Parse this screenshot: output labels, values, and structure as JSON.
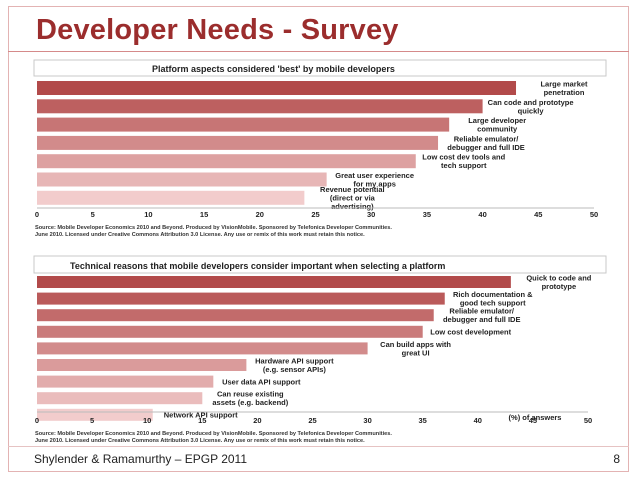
{
  "slide": {
    "title": "Developer Needs - Survey",
    "footer": "Shylender & Ramamurthy – EPGP 2011",
    "page_number": "8"
  },
  "colors": {
    "title": "#9b2d2d",
    "dark_bar": "#b24a4a",
    "light_bar": "#f2cccc"
  },
  "chart_data": [
    {
      "type": "bar",
      "orientation": "horizontal",
      "title": "Platform aspects considered 'best' by mobile developers",
      "categories": [
        [
          "Large market",
          "penetration"
        ],
        [
          "Can code and prototype",
          "quickly"
        ],
        [
          "Large developer",
          "community"
        ],
        [
          "Reliable emulator/",
          "debugger and full IDE"
        ],
        [
          "Low cost dev tools and",
          "tech support"
        ],
        [
          "Great user experience",
          "for my apps"
        ],
        [
          "Revenue potential",
          "(direct or via",
          "advertising)"
        ]
      ],
      "values": [
        43,
        40,
        37,
        36,
        34,
        26,
        24
      ],
      "xlim": [
        0,
        50
      ],
      "xticks": [
        "0",
        "5",
        "10",
        "15",
        "20",
        "25",
        "30",
        "35",
        "40",
        "45",
        "50"
      ],
      "source": [
        "Source: Mobile Developer Economics 2010 and Beyond. Produced by VisionMobile. Sponsored by Telefonica Developer Communities.",
        "June 2010. Licensed under Creative Commons Attribution 3.0 License. Any use or remix of this work must retain this notice."
      ]
    },
    {
      "type": "bar",
      "orientation": "horizontal",
      "title": "Technical reasons that mobile developers consider important when selecting a platform",
      "categories": [
        [
          "Quick to code and",
          "prototype"
        ],
        [
          "Rich documentation &",
          "good tech support"
        ],
        [
          "Reliable emulator/",
          "debugger and full IDE"
        ],
        [
          "Low cost development"
        ],
        [
          "Can build apps with",
          "great UI"
        ],
        [
          "Hardware API support",
          "(e.g. sensor APIs)"
        ],
        [
          "User data API support"
        ],
        [
          "Can reuse existing",
          "assets (e.g. backend)"
        ],
        [
          "Network API support"
        ]
      ],
      "values": [
        43,
        37,
        36,
        35,
        30,
        19,
        16,
        15,
        10.5
      ],
      "xlim": [
        0,
        50
      ],
      "xticks": [
        "0",
        "5",
        "10",
        "15",
        "20",
        "25",
        "30",
        "35",
        "40",
        "45",
        "50"
      ],
      "annotation": "(%) of answers",
      "source": [
        "Source: Mobile Developer Economics 2010 and Beyond. Produced by VisionMobile. Sponsored by Telefonica Developer Communities.",
        "June 2010. Licensed under Creative Commons Attribution 3.0 License. Any use or remix of this work must retain this notice."
      ]
    }
  ]
}
